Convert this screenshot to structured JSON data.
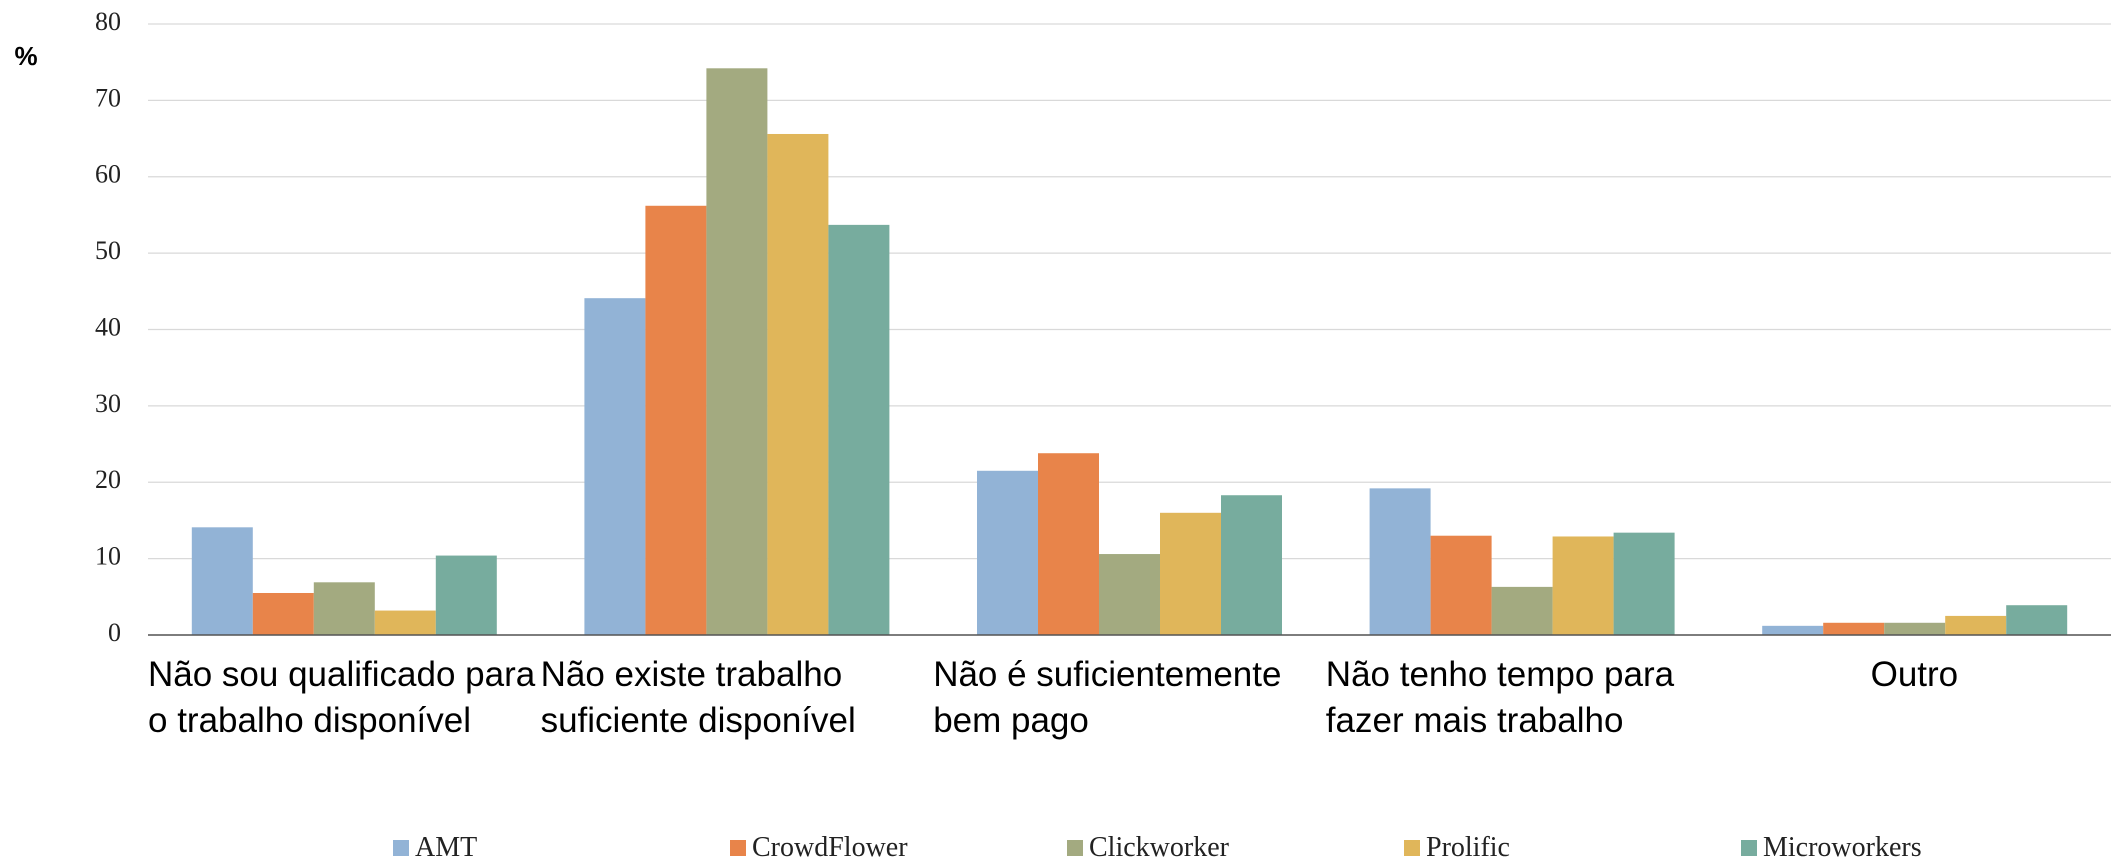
{
  "chart_data": {
    "type": "bar",
    "y_label": "%",
    "categories": [
      "Não sou qualificado para o trabalho disponível",
      "Não existe trabalho suficiente disponível",
      "Não é suficientemente bem pago",
      "Não tenho tempo para fazer mais trabalho",
      "Outro"
    ],
    "series": [
      {
        "name": "AMT",
        "color": "#92b3d6",
        "values": [
          14.1,
          44.1,
          21.5,
          19.2,
          1.2
        ]
      },
      {
        "name": "CrowdFlower",
        "color": "#e8844a",
        "values": [
          5.5,
          56.2,
          23.8,
          13.0,
          1.6
        ]
      },
      {
        "name": "Clickworker",
        "color": "#a3aa80",
        "values": [
          6.9,
          74.2,
          10.6,
          6.3,
          1.6
        ]
      },
      {
        "name": "Prolific",
        "color": "#e0b65a",
        "values": [
          3.2,
          65.6,
          16.0,
          12.9,
          2.5
        ]
      },
      {
        "name": "Microworkers",
        "color": "#77ac9e",
        "values": [
          10.4,
          53.7,
          18.3,
          13.4,
          3.9
        ]
      }
    ],
    "ylim": [
      0,
      80
    ],
    "yticks": [
      0,
      10,
      20,
      30,
      40,
      50,
      60,
      70,
      80
    ],
    "grid": true
  }
}
